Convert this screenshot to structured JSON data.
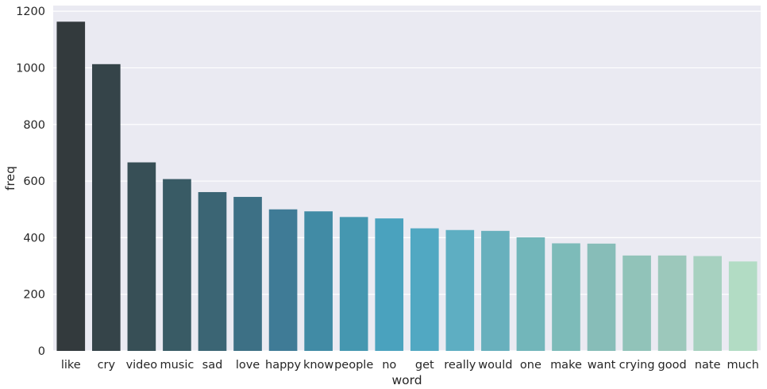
{
  "chart_data": {
    "type": "bar",
    "title": "",
    "xlabel": "word",
    "ylabel": "freq",
    "categories": [
      "like",
      "cry",
      "video",
      "music",
      "sad",
      "love",
      "happy",
      "know",
      "people",
      "no",
      "get",
      "really",
      "would",
      "one",
      "make",
      "want",
      "crying",
      "good",
      "nate",
      "much"
    ],
    "values": [
      1163,
      1013,
      666,
      607,
      561,
      544,
      500,
      493,
      473,
      468,
      433,
      427,
      424,
      401,
      380,
      379,
      337,
      337,
      335,
      316
    ],
    "ylim": [
      0,
      1220
    ],
    "yticks": [
      0,
      200,
      400,
      600,
      800,
      1000,
      1200
    ],
    "grid": true,
    "palette": "GnBu_d",
    "colors": {
      "background": "#eaeaf2",
      "grid": "#ffffff",
      "text": "#262626",
      "bars": [
        "#333a3d",
        "#354449",
        "#374f56",
        "#395b65",
        "#3b6574",
        "#3d7085",
        "#3f7b96",
        "#418ba5",
        "#4597b0",
        "#4aa2be",
        "#51a8c2",
        "#5eaec2",
        "#68b0bd",
        "#72b6ba",
        "#7dbbb9",
        "#87bdb8",
        "#91c3b9",
        "#9cc8bb",
        "#a7d1c0",
        "#b2dcc4"
      ]
    }
  }
}
